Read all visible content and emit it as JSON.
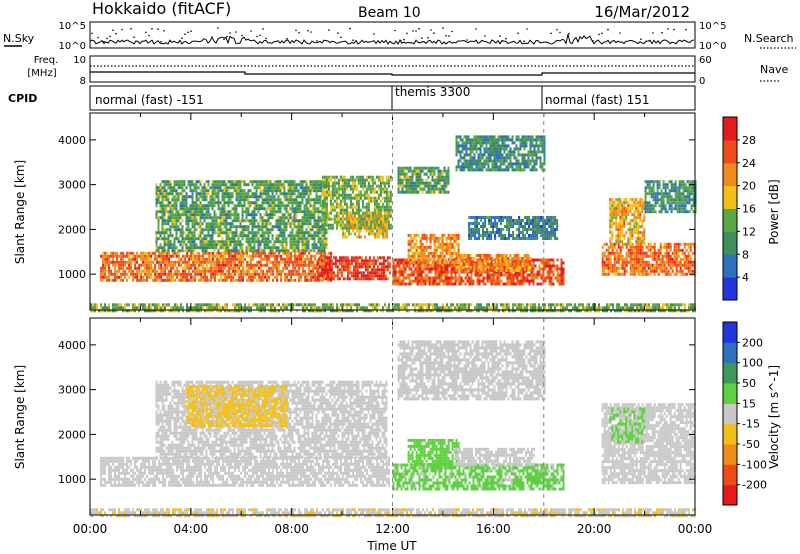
{
  "header": {
    "title": "Hokkaido (fitACF)",
    "beam": "Beam 10",
    "date": "16/Mar/2012"
  },
  "summary_panels": {
    "nsky_label": "N.Sky",
    "nsky_ticks": [
      "10^5",
      "10^0"
    ],
    "nsearch_label": "N.Search",
    "freq_label_line1": "Freq.",
    "freq_label_line2": "[MHz]",
    "freq_ticks": [
      10,
      8
    ],
    "nave_label": "Nave",
    "nave_ticks": [
      60,
      0
    ],
    "cpid_label": "CPID",
    "cpid_segments": [
      {
        "label": "normal (fast) -151",
        "start_hour": 0,
        "end_hour": 12
      },
      {
        "label": "themis 3300",
        "start_hour": 12,
        "end_hour": 18
      },
      {
        "label": "normal (fast) 151",
        "start_hour": 18,
        "end_hour": 24
      }
    ]
  },
  "chart_data": [
    {
      "type": "heatmap",
      "title": "Power",
      "xlabel": "Time UT",
      "ylabel": "Slant Range [km]",
      "xlim_hours": [
        0,
        24
      ],
      "ylim_km": [
        200,
        4600
      ],
      "x_ticks": [
        "00:00",
        "04:00",
        "08:00",
        "12:00",
        "16:00",
        "20:00",
        "00:00"
      ],
      "y_ticks": [
        1000,
        2000,
        3000,
        4000
      ],
      "colorbar": {
        "label": "Power [dB]",
        "ticks": [
          4,
          8,
          12,
          16,
          20,
          24,
          28
        ],
        "range": [
          0,
          32
        ],
        "colors": [
          "#2236e0",
          "#2f6fc0",
          "#3f8f5a",
          "#5aa845",
          "#f3c019",
          "#f08a1c",
          "#f04a18",
          "#e41a1c"
        ]
      },
      "regions": [
        {
          "t0": 0.4,
          "t1": 9.6,
          "r0": 850,
          "r1": 1500,
          "power_db": 24
        },
        {
          "t0": 9.0,
          "t1": 11.9,
          "r0": 900,
          "r1": 1400,
          "power_db": 28
        },
        {
          "t0": 12.0,
          "t1": 18.8,
          "r0": 750,
          "r1": 1350,
          "power_db": 26
        },
        {
          "t0": 12.6,
          "t1": 14.6,
          "r0": 1200,
          "r1": 1900,
          "power_db": 22
        },
        {
          "t0": 14.5,
          "t1": 17.5,
          "r0": 1100,
          "r1": 1450,
          "power_db": 22
        },
        {
          "t0": 20.3,
          "t1": 24.0,
          "r0": 1000,
          "r1": 1700,
          "power_db": 24
        },
        {
          "t0": 20.6,
          "t1": 22.0,
          "r0": 1700,
          "r1": 2700,
          "power_db": 20
        },
        {
          "t0": 2.6,
          "t1": 9.4,
          "r0": 1500,
          "r1": 3100,
          "power_db": 12
        },
        {
          "t0": 9.2,
          "t1": 11.9,
          "r0": 2000,
          "r1": 3200,
          "power_db": 14
        },
        {
          "t0": 10.0,
          "t1": 11.8,
          "r0": 1800,
          "r1": 2400,
          "power_db": 18
        },
        {
          "t0": 12.2,
          "t1": 14.2,
          "r0": 2800,
          "r1": 3400,
          "power_db": 12
        },
        {
          "t0": 14.5,
          "t1": 18.0,
          "r0": 3300,
          "r1": 4100,
          "power_db": 10
        },
        {
          "t0": 15.0,
          "t1": 18.5,
          "r0": 1800,
          "r1": 2300,
          "power_db": 8
        },
        {
          "t0": 22.0,
          "t1": 24.0,
          "r0": 2400,
          "r1": 3100,
          "power_db": 10
        },
        {
          "t0": 0.0,
          "t1": 24.0,
          "r0": 200,
          "r1": 350,
          "power_db": 14
        }
      ]
    },
    {
      "type": "heatmap",
      "title": "Velocity",
      "xlabel": "Time UT",
      "ylabel": "Slant Range [km]",
      "xlim_hours": [
        0,
        24
      ],
      "ylim_km": [
        200,
        4600
      ],
      "x_ticks": [
        "00:00",
        "04:00",
        "08:00",
        "12:00",
        "16:00",
        "20:00",
        "00:00"
      ],
      "y_ticks": [
        1000,
        2000,
        3000,
        4000
      ],
      "colorbar": {
        "label": "Velocity [m s^-1]",
        "ticks": [
          200,
          100,
          50,
          15,
          -15,
          -50,
          -100,
          -200
        ],
        "range": [
          -250,
          250
        ],
        "colors": [
          "#e41a1c",
          "#f04a18",
          "#f08a1c",
          "#f3c019",
          "#c8c8c8",
          "#5fd040",
          "#3f9a5a",
          "#2f6fc0",
          "#2236e0"
        ]
      },
      "regions": [
        {
          "t0": 0.4,
          "t1": 11.9,
          "r0": 850,
          "r1": 1500,
          "velocity_ms": 0
        },
        {
          "t0": 2.6,
          "t1": 11.8,
          "r0": 1500,
          "r1": 3200,
          "velocity_ms": 0
        },
        {
          "t0": 3.8,
          "t1": 7.8,
          "r0": 2200,
          "r1": 3100,
          "velocity_ms": -40
        },
        {
          "t0": 12.0,
          "t1": 18.8,
          "r0": 750,
          "r1": 1350,
          "velocity_ms": 40
        },
        {
          "t0": 12.6,
          "t1": 14.6,
          "r0": 1350,
          "r1": 1900,
          "velocity_ms": 60
        },
        {
          "t0": 14.4,
          "t1": 17.6,
          "r0": 1350,
          "r1": 1700,
          "velocity_ms": 0
        },
        {
          "t0": 12.2,
          "t1": 18.0,
          "r0": 2800,
          "r1": 4100,
          "velocity_ms": 0
        },
        {
          "t0": 20.3,
          "t1": 24.0,
          "r0": 900,
          "r1": 2700,
          "velocity_ms": 0
        },
        {
          "t0": 20.6,
          "t1": 22.0,
          "r0": 1800,
          "r1": 2600,
          "velocity_ms": 30
        },
        {
          "t0": 0.0,
          "t1": 24.0,
          "r0": 200,
          "r1": 350,
          "velocity_ms": -20
        }
      ]
    }
  ]
}
